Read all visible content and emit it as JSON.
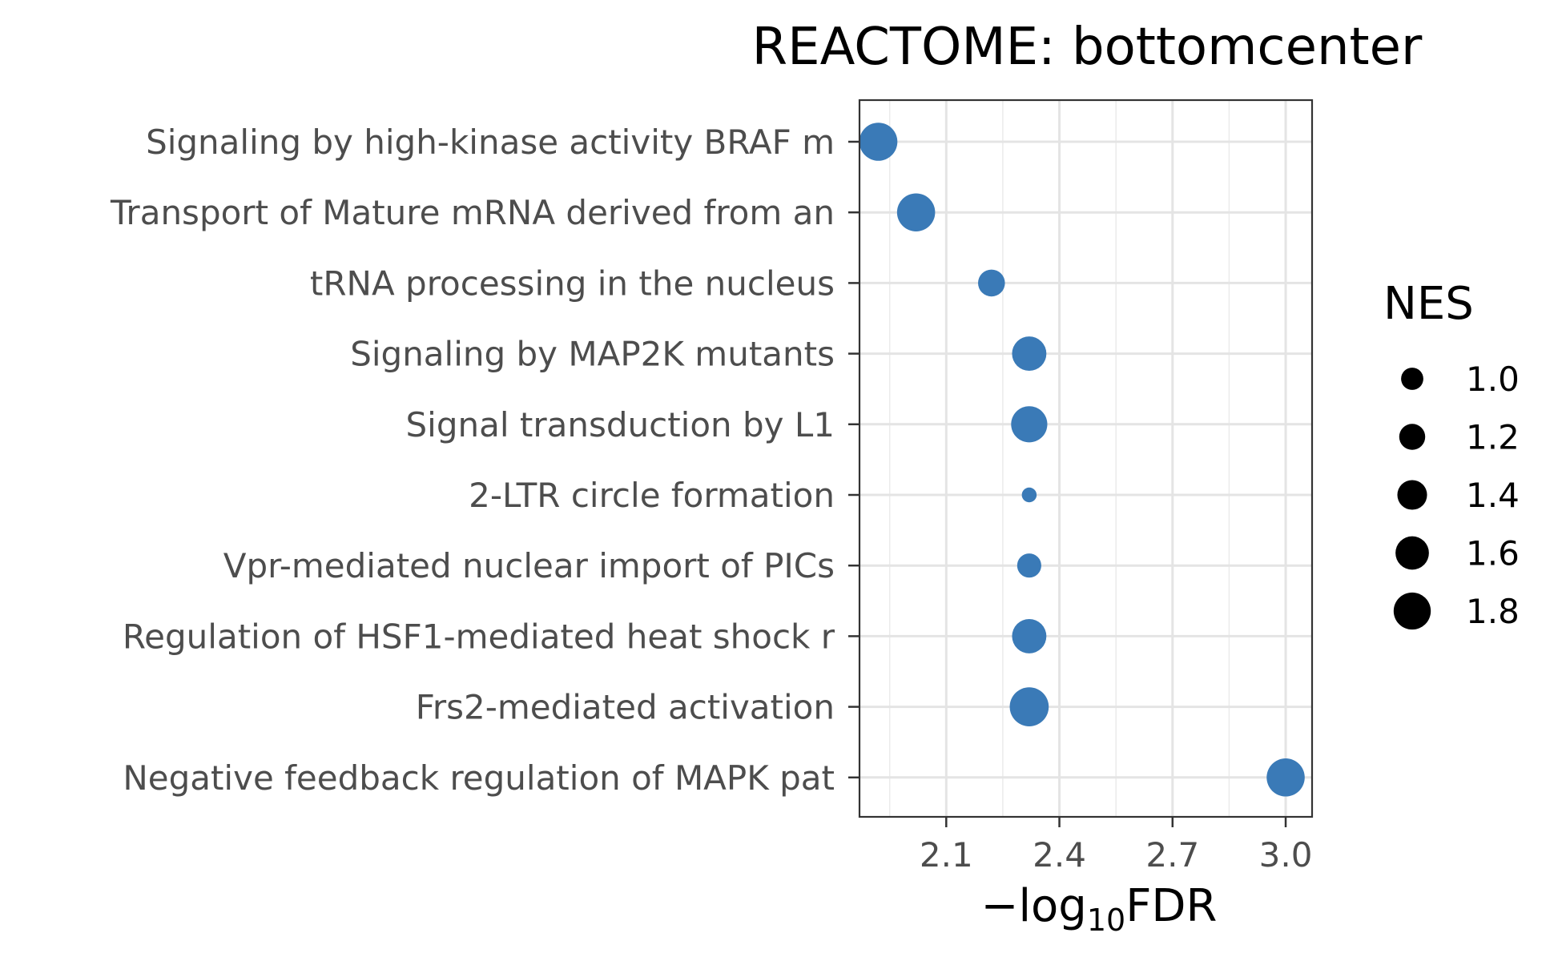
{
  "chart_data": {
    "type": "scatter",
    "title": "REACTOME: bottomcenter",
    "xlabel_prefix": "−",
    "xlabel_main": "log",
    "xlabel_sub": "10",
    "xlabel_suffix": "FDR",
    "xlim": [
      1.87,
      3.07
    ],
    "xticks": [
      "2.1",
      "2.4",
      "2.7",
      "3.0"
    ],
    "point_color": "#3a7ab7",
    "size_legend_title": "NES",
    "size_legend": [
      {
        "label": "1.0",
        "value": 1.0
      },
      {
        "label": "1.2",
        "value": 1.2
      },
      {
        "label": "1.4",
        "value": 1.4
      },
      {
        "label": "1.6",
        "value": 1.6
      },
      {
        "label": "1.8",
        "value": 1.8
      }
    ],
    "points": [
      {
        "term": "Signaling by high-kinase activity BRAF m",
        "x": 1.92,
        "nes": 1.85
      },
      {
        "term": "Transport of Mature mRNA derived from an",
        "x": 2.02,
        "nes": 1.85
      },
      {
        "term": "tRNA processing in the nucleus",
        "x": 2.22,
        "nes": 1.25
      },
      {
        "term": "Signaling by MAP2K mutants",
        "x": 2.32,
        "nes": 1.65
      },
      {
        "term": "Signal transduction by L1",
        "x": 2.32,
        "nes": 1.75
      },
      {
        "term": "2-LTR circle formation",
        "x": 2.32,
        "nes": 0.6
      },
      {
        "term": "Vpr-mediated nuclear import of PICs",
        "x": 2.32,
        "nes": 1.1
      },
      {
        "term": "Regulation of HSF1-mediated heat shock r",
        "x": 2.32,
        "nes": 1.65
      },
      {
        "term": "Frs2-mediated activation",
        "x": 2.32,
        "nes": 1.9
      },
      {
        "term": "Negative feedback regulation of MAPK pat",
        "x": 3.0,
        "nes": 1.85
      }
    ]
  }
}
